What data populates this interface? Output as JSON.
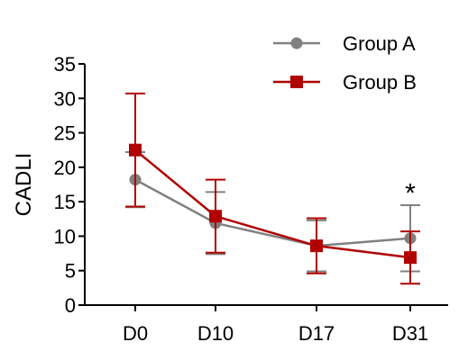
{
  "chart_data": {
    "type": "line",
    "categories": [
      "D0",
      "D10",
      "D17",
      "D31"
    ],
    "ylabel": "CADLI",
    "xlabel": "",
    "ylim": [
      0,
      35
    ],
    "yticks": [
      0,
      5,
      10,
      15,
      20,
      25,
      30,
      35
    ],
    "grid": false,
    "legend": "top-right",
    "series": [
      {
        "name": "Group A",
        "values": [
          18.2,
          11.9,
          8.6,
          9.7
        ],
        "error": [
          4.0,
          4.5,
          3.7,
          4.8
        ],
        "marker": "circle",
        "color": "#808080"
      },
      {
        "name": "Group B",
        "values": [
          22.5,
          12.9,
          8.6,
          6.9
        ],
        "error": [
          8.2,
          5.3,
          4.0,
          3.8
        ],
        "marker": "square",
        "color": "#b00000"
      }
    ],
    "annotations": [
      {
        "text": "*",
        "category": "D31",
        "y": 16.5
      }
    ]
  }
}
